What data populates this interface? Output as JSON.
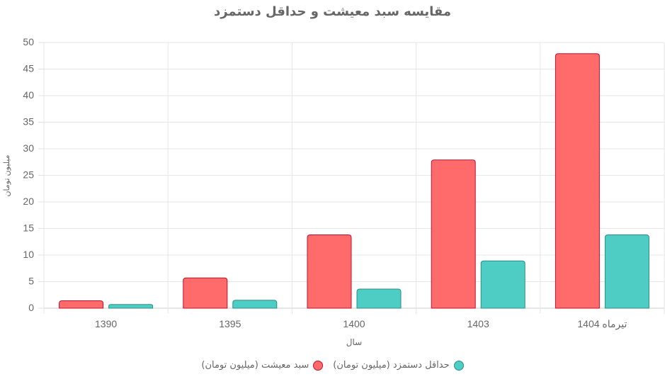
{
  "chart_data": {
    "type": "bar",
    "title": "مقایسه سبد معیشت و حداقل دستمزد",
    "xlabel": "سال",
    "ylabel": "میلیون تومان",
    "categories": [
      "1390",
      "1395",
      "1400",
      "1403",
      "تیرماه 1404"
    ],
    "ylim": [
      0,
      50
    ],
    "yticks": [
      0,
      5,
      10,
      15,
      20,
      25,
      30,
      35,
      40,
      45,
      50
    ],
    "grid": true,
    "legend_position": "bottom",
    "series": [
      {
        "name": "سبد معیشت (میلیون تومان)",
        "values": [
          1.4,
          5.7,
          13.8,
          27.9,
          47.9
        ],
        "color": "#ff6b6b",
        "border": "#c0102a"
      },
      {
        "name": "حداقل دستمزد (میلیون تومان)",
        "values": [
          0.7,
          1.5,
          3.6,
          8.9,
          13.8
        ],
        "color": "#4ecdc4",
        "border": "#2b8f86"
      }
    ]
  }
}
